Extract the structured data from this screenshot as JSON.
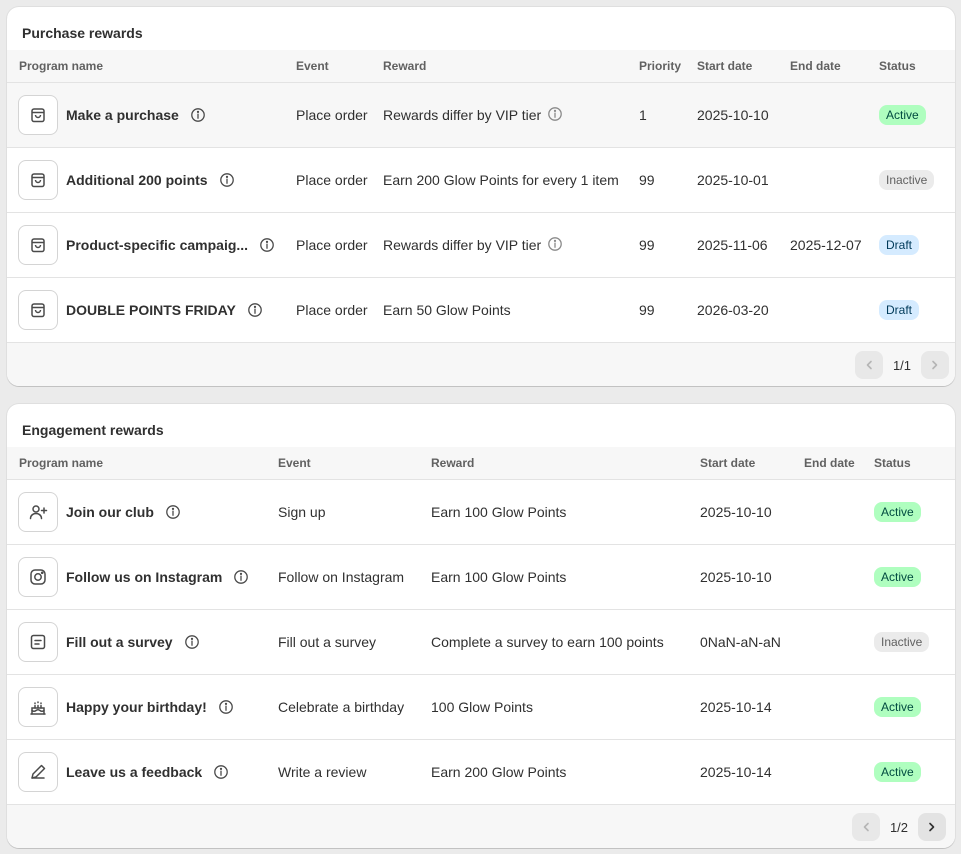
{
  "colors": {
    "active_bg": "#affebf",
    "active_fg": "#014b40",
    "inactive_bg": "#ebebeb",
    "inactive_fg": "#616161",
    "draft_bg": "#d5ebff",
    "draft_fg": "#003a5a"
  },
  "purchase": {
    "title": "Purchase rewards",
    "headers": {
      "name": "Program name",
      "event": "Event",
      "reward": "Reward",
      "priority": "Priority",
      "start": "Start date",
      "end": "End date",
      "status": "Status"
    },
    "rows": [
      {
        "icon": "shopping-bag-icon",
        "name": "Make a purchase",
        "event": "Place order",
        "reward": "Rewards differ by VIP tier",
        "reward_info": true,
        "priority": "1",
        "start": "2025-10-10",
        "end": "",
        "status": "Active",
        "status_kind": "active"
      },
      {
        "icon": "shopping-bag-icon",
        "name": "Additional 200 points",
        "event": "Place order",
        "reward": "Earn 200 Glow Points for every 1 item",
        "reward_info": false,
        "priority": "99",
        "start": "2025-10-01",
        "end": "",
        "status": "Inactive",
        "status_kind": "inactive"
      },
      {
        "icon": "shopping-bag-icon",
        "name": "Product-specific campaig...",
        "event": "Place order",
        "reward": "Rewards differ by VIP tier",
        "reward_info": true,
        "priority": "99",
        "start": "2025-11-06",
        "end": "2025-12-07",
        "status": "Draft",
        "status_kind": "draft"
      },
      {
        "icon": "shopping-bag-icon",
        "name": "DOUBLE POINTS FRIDAY",
        "event": "Place order",
        "reward": "Earn 50 Glow Points",
        "reward_info": false,
        "priority": "99",
        "start": "2026-03-20",
        "end": "",
        "status": "Draft",
        "status_kind": "draft"
      }
    ],
    "pagination": {
      "text": "1/1",
      "prev_enabled": false,
      "next_enabled": false
    }
  },
  "engagement": {
    "title": "Engagement rewards",
    "headers": {
      "name": "Program name",
      "event": "Event",
      "reward": "Reward",
      "start": "Start date",
      "end": "End date",
      "status": "Status"
    },
    "rows": [
      {
        "icon": "user-add-icon",
        "name": "Join our club",
        "event": "Sign up",
        "reward": "Earn 100 Glow Points",
        "start": "2025-10-10",
        "end": "",
        "status": "Active",
        "status_kind": "active"
      },
      {
        "icon": "instagram-icon",
        "name": "Follow us on Instagram",
        "event": "Follow on Instagram",
        "reward": "Earn 100 Glow Points",
        "start": "2025-10-10",
        "end": "",
        "status": "Active",
        "status_kind": "active"
      },
      {
        "icon": "survey-form-icon",
        "name": "Fill out a survey",
        "event": "Fill out a survey",
        "reward": "Complete a survey to earn 100 points",
        "start": "0NaN-aN-aN",
        "end": "",
        "status": "Inactive",
        "status_kind": "inactive"
      },
      {
        "icon": "birthday-cake-icon",
        "name": "Happy your birthday!",
        "event": "Celebrate a birthday",
        "reward": "100 Glow Points",
        "start": "2025-10-14",
        "end": "",
        "status": "Active",
        "status_kind": "active"
      },
      {
        "icon": "pencil-icon",
        "name": "Leave us a feedback",
        "event": "Write a review",
        "reward": "Earn 200 Glow Points",
        "start": "2025-10-14",
        "end": "",
        "status": "Active",
        "status_kind": "active"
      }
    ],
    "pagination": {
      "text": "1/2",
      "prev_enabled": false,
      "next_enabled": true
    }
  }
}
